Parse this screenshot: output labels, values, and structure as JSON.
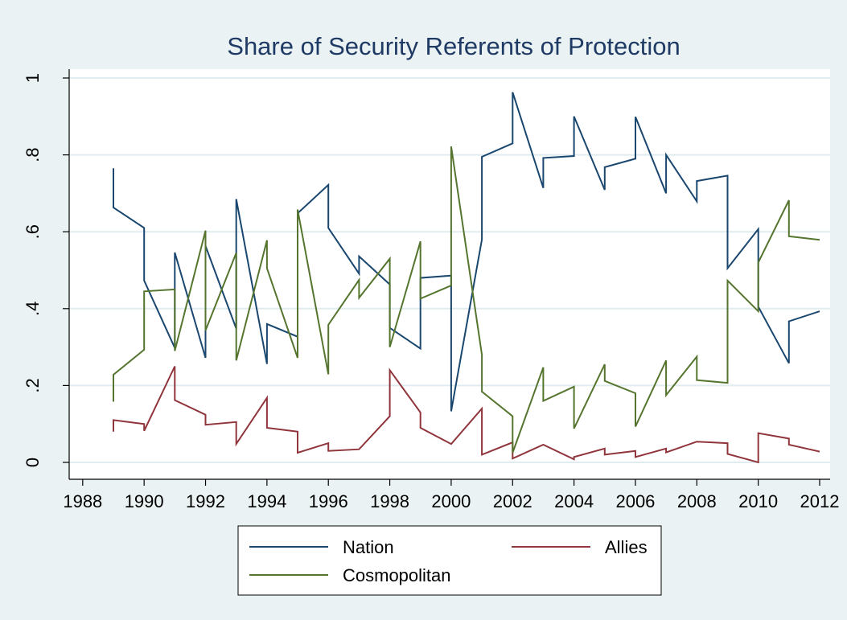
{
  "chart_data": {
    "type": "line",
    "title": "Share of Security Referents of Protection",
    "xlabel": "",
    "ylabel": "",
    "xlim": [
      1988,
      2012
    ],
    "ylim": [
      0,
      1
    ],
    "x_ticks": [
      "1988",
      "1990",
      "1992",
      "1994",
      "1996",
      "1998",
      "2000",
      "2002",
      "2004",
      "2006",
      "2008",
      "2010",
      "2012"
    ],
    "y_ticks": [
      "0",
      ".2",
      ".4",
      ".6",
      ".8",
      "1"
    ],
    "grid": "horizontal",
    "legend_position": "bottom",
    "colors": {
      "background": "#eaf2f3",
      "plot_area": "#ffffff",
      "grid": "#e0ecef",
      "axis": "#000000",
      "title": "#1f3a64"
    },
    "series": [
      {
        "name": "Nation",
        "color": "#1a476f",
        "points": [
          [
            1989,
            0.765
          ],
          [
            1989,
            0.663
          ],
          [
            1990,
            0.61
          ],
          [
            1990,
            0.473
          ],
          [
            1991,
            0.298
          ],
          [
            1991,
            0.546
          ],
          [
            1992,
            0.272
          ],
          [
            1992,
            0.563
          ],
          [
            1993,
            0.348
          ],
          [
            1993,
            0.685
          ],
          [
            1994,
            0.256
          ],
          [
            1994,
            0.36
          ],
          [
            1995,
            0.327
          ],
          [
            1995,
            0.648
          ],
          [
            1996,
            0.722
          ],
          [
            1996,
            0.61
          ],
          [
            1997,
            0.491
          ],
          [
            1997,
            0.536
          ],
          [
            1998,
            0.463
          ],
          [
            1998,
            0.35
          ],
          [
            1999,
            0.296
          ],
          [
            1999,
            0.48
          ],
          [
            2000,
            0.486
          ],
          [
            2000,
            0.133
          ],
          [
            2001,
            0.58
          ],
          [
            2001,
            0.795
          ],
          [
            2002,
            0.83
          ],
          [
            2002,
            0.963
          ],
          [
            2003,
            0.714
          ],
          [
            2003,
            0.792
          ],
          [
            2004,
            0.797
          ],
          [
            2004,
            0.9
          ],
          [
            2005,
            0.709
          ],
          [
            2005,
            0.768
          ],
          [
            2006,
            0.79
          ],
          [
            2006,
            0.899
          ],
          [
            2007,
            0.7
          ],
          [
            2007,
            0.8
          ],
          [
            2008,
            0.679
          ],
          [
            2008,
            0.732
          ],
          [
            2009,
            0.746
          ],
          [
            2009,
            0.505
          ],
          [
            2010,
            0.607
          ],
          [
            2010,
            0.405
          ],
          [
            2011,
            0.258
          ],
          [
            2011,
            0.367
          ],
          [
            2012,
            0.393
          ]
        ]
      },
      {
        "name": "Allies",
        "color": "#90353b",
        "points": [
          [
            1989,
            0.08
          ],
          [
            1989,
            0.11
          ],
          [
            1990,
            0.1
          ],
          [
            1990,
            0.082
          ],
          [
            1991,
            0.25
          ],
          [
            1991,
            0.162
          ],
          [
            1992,
            0.124
          ],
          [
            1992,
            0.098
          ],
          [
            1993,
            0.105
          ],
          [
            1993,
            0.048
          ],
          [
            1994,
            0.168
          ],
          [
            1994,
            0.09
          ],
          [
            1995,
            0.08
          ],
          [
            1995,
            0.025
          ],
          [
            1996,
            0.05
          ],
          [
            1996,
            0.03
          ],
          [
            1997,
            0.034
          ],
          [
            1998,
            0.12
          ],
          [
            1998,
            0.24
          ],
          [
            1999,
            0.13
          ],
          [
            1999,
            0.09
          ],
          [
            2000,
            0.048
          ],
          [
            2001,
            0.14
          ],
          [
            2001,
            0.02
          ],
          [
            2002,
            0.052
          ],
          [
            2002,
            0.01
          ],
          [
            2003,
            0.046
          ],
          [
            2004,
            0.008
          ],
          [
            2004,
            0.014
          ],
          [
            2005,
            0.036
          ],
          [
            2005,
            0.02
          ],
          [
            2006,
            0.03
          ],
          [
            2006,
            0.014
          ],
          [
            2007,
            0.036
          ],
          [
            2007,
            0.026
          ],
          [
            2008,
            0.054
          ],
          [
            2009,
            0.05
          ],
          [
            2009,
            0.022
          ],
          [
            2010,
            0.0
          ],
          [
            2010,
            0.076
          ],
          [
            2011,
            0.062
          ],
          [
            2011,
            0.046
          ],
          [
            2012,
            0.028
          ]
        ]
      },
      {
        "name": "Cosmopolitan",
        "color": "#55752f",
        "points": [
          [
            1989,
            0.158
          ],
          [
            1989,
            0.228
          ],
          [
            1990,
            0.293
          ],
          [
            1990,
            0.445
          ],
          [
            1991,
            0.45
          ],
          [
            1991,
            0.29
          ],
          [
            1992,
            0.603
          ],
          [
            1992,
            0.343
          ],
          [
            1993,
            0.545
          ],
          [
            1993,
            0.265
          ],
          [
            1994,
            0.578
          ],
          [
            1994,
            0.505
          ],
          [
            1995,
            0.272
          ],
          [
            1995,
            0.658
          ],
          [
            1996,
            0.229
          ],
          [
            1996,
            0.358
          ],
          [
            1997,
            0.475
          ],
          [
            1997,
            0.428
          ],
          [
            1998,
            0.53
          ],
          [
            1998,
            0.3
          ],
          [
            1999,
            0.575
          ],
          [
            1999,
            0.426
          ],
          [
            2000,
            0.46
          ],
          [
            2000,
            0.822
          ],
          [
            2001,
            0.28
          ],
          [
            2001,
            0.184
          ],
          [
            2002,
            0.12
          ],
          [
            2002,
            0.025
          ],
          [
            2003,
            0.247
          ],
          [
            2003,
            0.16
          ],
          [
            2004,
            0.197
          ],
          [
            2004,
            0.088
          ],
          [
            2005,
            0.255
          ],
          [
            2005,
            0.212
          ],
          [
            2006,
            0.18
          ],
          [
            2006,
            0.093
          ],
          [
            2007,
            0.265
          ],
          [
            2007,
            0.175
          ],
          [
            2008,
            0.275
          ],
          [
            2008,
            0.214
          ],
          [
            2009,
            0.207
          ],
          [
            2009,
            0.473
          ],
          [
            2010,
            0.393
          ],
          [
            2010,
            0.52
          ],
          [
            2011,
            0.682
          ],
          [
            2011,
            0.588
          ],
          [
            2012,
            0.579
          ]
        ]
      }
    ]
  }
}
